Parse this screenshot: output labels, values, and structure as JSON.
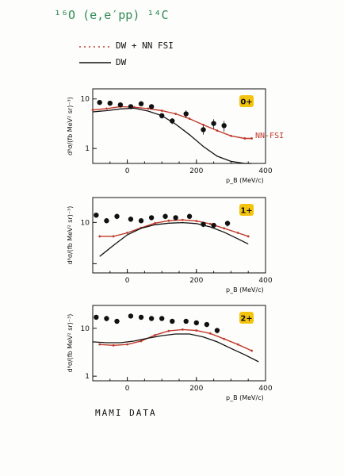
{
  "header": {
    "reaction": "¹⁶O (e,e′pp) ¹⁴C",
    "legend": [
      {
        "label": "DW + NN FSI",
        "color": "#c0392b",
        "style": "dotted-red"
      },
      {
        "label": "DW",
        "color": "#111111",
        "style": "solid"
      }
    ],
    "footer": "MAMI DATA",
    "annotation": "NN-FSI"
  },
  "colors": {
    "ink": "#111111",
    "red": "#c0392b",
    "green": "#2e8b57",
    "badge": "#f2c40f"
  },
  "chart_data": [
    {
      "type": "line",
      "badge": "0+",
      "xlabel": "p_B (MeV/c)",
      "ylabel": "d⁸σ/(fb MeV² sr)⁻³)",
      "xlim": [
        -100,
        400
      ],
      "ylim_log": [
        0.5,
        16
      ],
      "xticks": [
        0,
        200,
        400
      ],
      "yticks": [
        {
          "v": 1,
          "t": "1"
        },
        {
          "v": 10,
          "t": "10"
        }
      ],
      "data_points": {
        "x": [
          -80,
          -50,
          -20,
          10,
          40,
          70,
          100,
          130,
          170,
          220,
          250,
          280
        ],
        "y": [
          8.5,
          8.2,
          7.6,
          7.0,
          8.0,
          7.0,
          4.6,
          3.6,
          5.0,
          2.4,
          3.2,
          2.9
        ],
        "err": [
          0.8,
          0.8,
          0.7,
          0.7,
          0.8,
          0.7,
          0.6,
          0.5,
          0.9,
          0.5,
          0.7,
          0.7
        ]
      },
      "series": [
        {
          "name": "DW + NN FSI",
          "x": [
            -100,
            -60,
            -20,
            20,
            60,
            100,
            140,
            180,
            220,
            260,
            300,
            340,
            360
          ],
          "y": [
            6.0,
            6.4,
            7.0,
            6.8,
            6.4,
            5.8,
            5.0,
            4.0,
            3.0,
            2.3,
            1.8,
            1.6,
            1.6
          ]
        },
        {
          "name": "DW",
          "x": [
            -100,
            -60,
            -20,
            20,
            60,
            100,
            140,
            180,
            220,
            260,
            300,
            340,
            360
          ],
          "y": [
            5.5,
            5.8,
            6.3,
            6.5,
            5.7,
            4.6,
            3.1,
            1.9,
            1.1,
            0.7,
            0.55,
            0.5,
            0.5
          ]
        }
      ]
    },
    {
      "type": "line",
      "badge": "1+",
      "xlabel": "p_B (MeV/c)",
      "ylabel": "d⁸σ/(fb MeV² sr)⁻³)",
      "xlim": [
        -100,
        400
      ],
      "ylim_log": [
        0.6,
        40
      ],
      "xticks": [
        0,
        200,
        400
      ],
      "yticks": [
        {
          "v": 1,
          "t": ""
        },
        {
          "v": 10,
          "t": "10"
        }
      ],
      "data_points": {
        "x": [
          -90,
          -60,
          -30,
          10,
          40,
          70,
          110,
          140,
          180,
          220,
          250,
          290
        ],
        "y": [
          15,
          11,
          14,
          12,
          11,
          13,
          14,
          13,
          14,
          9,
          8.5,
          9.5
        ],
        "err": [
          2,
          1.5,
          2,
          1.8,
          1.5,
          1.8,
          2,
          1.8,
          2,
          1.3,
          1.2,
          1.6
        ]
      },
      "series": [
        {
          "name": "DW + NN FSI",
          "x": [
            -80,
            -40,
            0,
            40,
            80,
            120,
            160,
            200,
            240,
            280,
            320,
            350
          ],
          "y": [
            4.6,
            4.6,
            5.6,
            7.4,
            9.6,
            11,
            11.5,
            10.8,
            9.2,
            7.2,
            5.6,
            4.6
          ]
        },
        {
          "name": "DW",
          "x": [
            -80,
            -40,
            0,
            40,
            80,
            120,
            160,
            200,
            240,
            280,
            320,
            350
          ],
          "y": [
            1.5,
            2.8,
            5.0,
            7.2,
            8.8,
            9.6,
            9.9,
            9.4,
            7.8,
            5.8,
            4.0,
            3.0
          ]
        }
      ]
    },
    {
      "type": "line",
      "badge": "2+",
      "xlabel": "p_B (MeV/c)",
      "ylabel": "d⁸σ/(fb MeV² sr)⁻³)",
      "xlim": [
        -100,
        400
      ],
      "ylim_log": [
        0.8,
        30
      ],
      "xticks": [
        0,
        200,
        400
      ],
      "yticks": [
        {
          "v": 1,
          "t": "1"
        },
        {
          "v": 10,
          "t": "10"
        }
      ],
      "data_points": {
        "x": [
          -90,
          -60,
          -30,
          10,
          40,
          70,
          100,
          130,
          170,
          200,
          230,
          260
        ],
        "y": [
          17,
          16,
          14,
          18,
          17,
          16,
          16,
          14,
          14,
          13,
          12,
          9
        ],
        "err": [
          2,
          2,
          1.6,
          2,
          2,
          1.8,
          1.8,
          1.6,
          1.6,
          1.5,
          1.4,
          1.2
        ]
      },
      "series": [
        {
          "name": "DW + NN FSI",
          "x": [
            -80,
            -40,
            0,
            40,
            80,
            120,
            160,
            200,
            240,
            280,
            320,
            360
          ],
          "y": [
            4.6,
            4.4,
            4.6,
            5.4,
            7.2,
            8.8,
            9.4,
            9.0,
            7.8,
            6.0,
            4.6,
            3.4
          ]
        },
        {
          "name": "DW",
          "x": [
            -100,
            -60,
            -20,
            20,
            60,
            100,
            140,
            180,
            220,
            260,
            300,
            340,
            380
          ],
          "y": [
            5.2,
            5.0,
            5.0,
            5.4,
            6.2,
            7.0,
            7.6,
            7.6,
            6.6,
            5.2,
            3.8,
            2.8,
            2.0
          ]
        }
      ]
    }
  ]
}
